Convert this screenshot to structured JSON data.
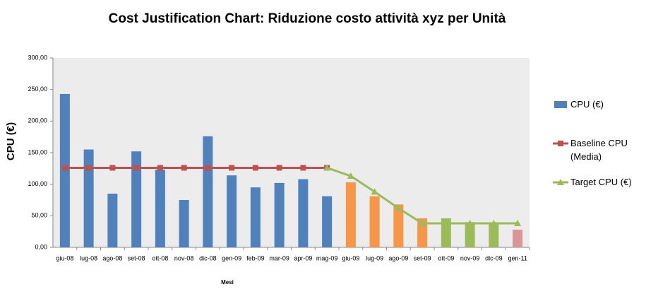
{
  "chart_data": {
    "type": "bar_line",
    "title": "Cost Justification Chart: Riduzione costo attività xyz per Unità",
    "x_label": "Mesi",
    "y_label": "CPU (€)",
    "categories": [
      "giu-08",
      "lug-08",
      "ago-08",
      "set-08",
      "ott-08",
      "nov-08",
      "dic-08",
      "gen-09",
      "feb-09",
      "mar-09",
      "apr-09",
      "mag-09",
      "giu-09",
      "lug-09",
      "ago-09",
      "set-09",
      "ott-09",
      "nov-09",
      "dic-09",
      "gen-11"
    ],
    "series": [
      {
        "name": "CPU (€)",
        "type": "bar",
        "color": "#4f81bd",
        "values": [
          243,
          155,
          85,
          152,
          123,
          75,
          176,
          114,
          95,
          102,
          108,
          81,
          103,
          81,
          68,
          46,
          46,
          40,
          38,
          28
        ],
        "point_colors": [
          "#4f81bd",
          "#4f81bd",
          "#4f81bd",
          "#4f81bd",
          "#4f81bd",
          "#4f81bd",
          "#4f81bd",
          "#4f81bd",
          "#4f81bd",
          "#4f81bd",
          "#4f81bd",
          "#4f81bd",
          "#f79646",
          "#f79646",
          "#f79646",
          "#f79646",
          "#9bbb59",
          "#9bbb59",
          "#9bbb59",
          "#d99694"
        ]
      },
      {
        "name": "Baseline CPU (Media)",
        "type": "line",
        "marker": "square",
        "color": "#c0504d",
        "values": [
          126,
          126,
          126,
          126,
          126,
          126,
          126,
          126,
          126,
          126,
          126,
          126,
          null,
          null,
          null,
          null,
          null,
          null,
          null,
          null
        ]
      },
      {
        "name": "Target  CPU (€)",
        "type": "line",
        "marker": "triangle",
        "color": "#9bbb59",
        "values": [
          null,
          null,
          null,
          null,
          null,
          null,
          null,
          null,
          null,
          null,
          null,
          126,
          113,
          88,
          62,
          38,
          38,
          38,
          38,
          38
        ]
      }
    ],
    "ylim": [
      0,
      300
    ],
    "yticks": [
      {
        "value": 0,
        "label": "0,00"
      },
      {
        "value": 50,
        "label": "50,00"
      },
      {
        "value": 100,
        "label": "100,00"
      },
      {
        "value": 150,
        "label": "150,00"
      },
      {
        "value": 200,
        "label": "200,00"
      },
      {
        "value": 250,
        "label": "250,00"
      },
      {
        "value": 300,
        "label": "300,00"
      }
    ],
    "grid": false,
    "legend": "right"
  }
}
